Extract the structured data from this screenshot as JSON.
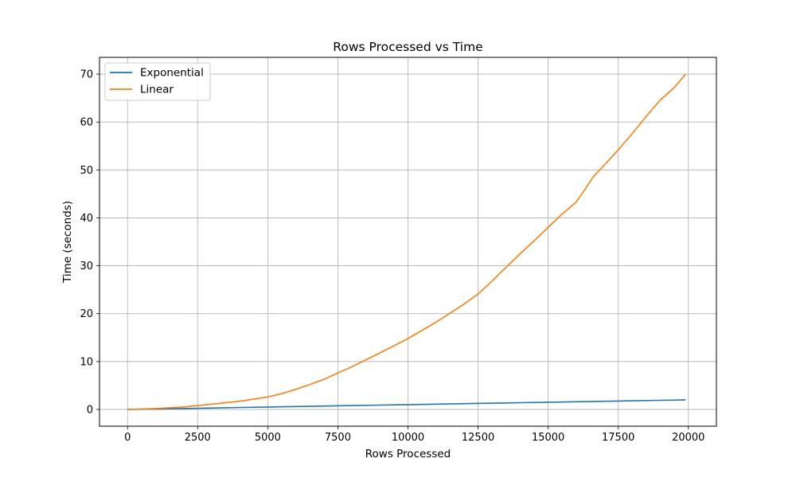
{
  "chart_data": {
    "type": "line",
    "title": "Rows Processed vs Time",
    "xlabel": "Rows Processed",
    "ylabel": "Time (seconds)",
    "xlim": [
      -1000,
      21000
    ],
    "ylim": [
      -3.5,
      73.5
    ],
    "xticks": [
      0,
      2500,
      5000,
      7500,
      10000,
      12500,
      15000,
      17500,
      20000
    ],
    "yticks": [
      0,
      10,
      20,
      30,
      40,
      50,
      60,
      70
    ],
    "grid": true,
    "legend_position": "top-left",
    "series": [
      {
        "name": "Exponential",
        "color": "#1f77b4",
        "points": [
          [
            0,
            0
          ],
          [
            1000,
            0.1
          ],
          [
            2000,
            0.2
          ],
          [
            3000,
            0.3
          ],
          [
            4000,
            0.4
          ],
          [
            5000,
            0.5
          ],
          [
            6000,
            0.6
          ],
          [
            7000,
            0.7
          ],
          [
            8000,
            0.8
          ],
          [
            9000,
            0.9
          ],
          [
            10000,
            1.0
          ],
          [
            11000,
            1.1
          ],
          [
            12000,
            1.2
          ],
          [
            13000,
            1.3
          ],
          [
            14000,
            1.4
          ],
          [
            15000,
            1.5
          ],
          [
            16000,
            1.6
          ],
          [
            17000,
            1.7
          ],
          [
            18000,
            1.8
          ],
          [
            19000,
            1.9
          ],
          [
            19900,
            2.0
          ]
        ]
      },
      {
        "name": "Linear",
        "color": "#ff7f0e",
        "points": [
          [
            0,
            0
          ],
          [
            1000,
            0.2
          ],
          [
            2000,
            0.5
          ],
          [
            3000,
            1.1
          ],
          [
            4000,
            1.7
          ],
          [
            5000,
            2.6
          ],
          [
            5500,
            3.3
          ],
          [
            6000,
            4.2
          ],
          [
            6500,
            5.2
          ],
          [
            7000,
            6.3
          ],
          [
            7500,
            7.6
          ],
          [
            8000,
            8.9
          ],
          [
            9000,
            11.8
          ],
          [
            10000,
            14.8
          ],
          [
            11000,
            18.2
          ],
          [
            12000,
            22.0
          ],
          [
            12500,
            24.1
          ],
          [
            13000,
            26.8
          ],
          [
            13500,
            29.7
          ],
          [
            14000,
            32.5
          ],
          [
            14500,
            35.2
          ],
          [
            15000,
            38.0
          ],
          [
            15500,
            40.8
          ],
          [
            16000,
            43.3
          ],
          [
            16300,
            45.8
          ],
          [
            16600,
            48.5
          ],
          [
            17000,
            51.0
          ],
          [
            17500,
            54.2
          ],
          [
            18000,
            57.6
          ],
          [
            18500,
            61.2
          ],
          [
            19000,
            64.6
          ],
          [
            19500,
            67.2
          ],
          [
            19900,
            70.0
          ]
        ]
      }
    ]
  }
}
